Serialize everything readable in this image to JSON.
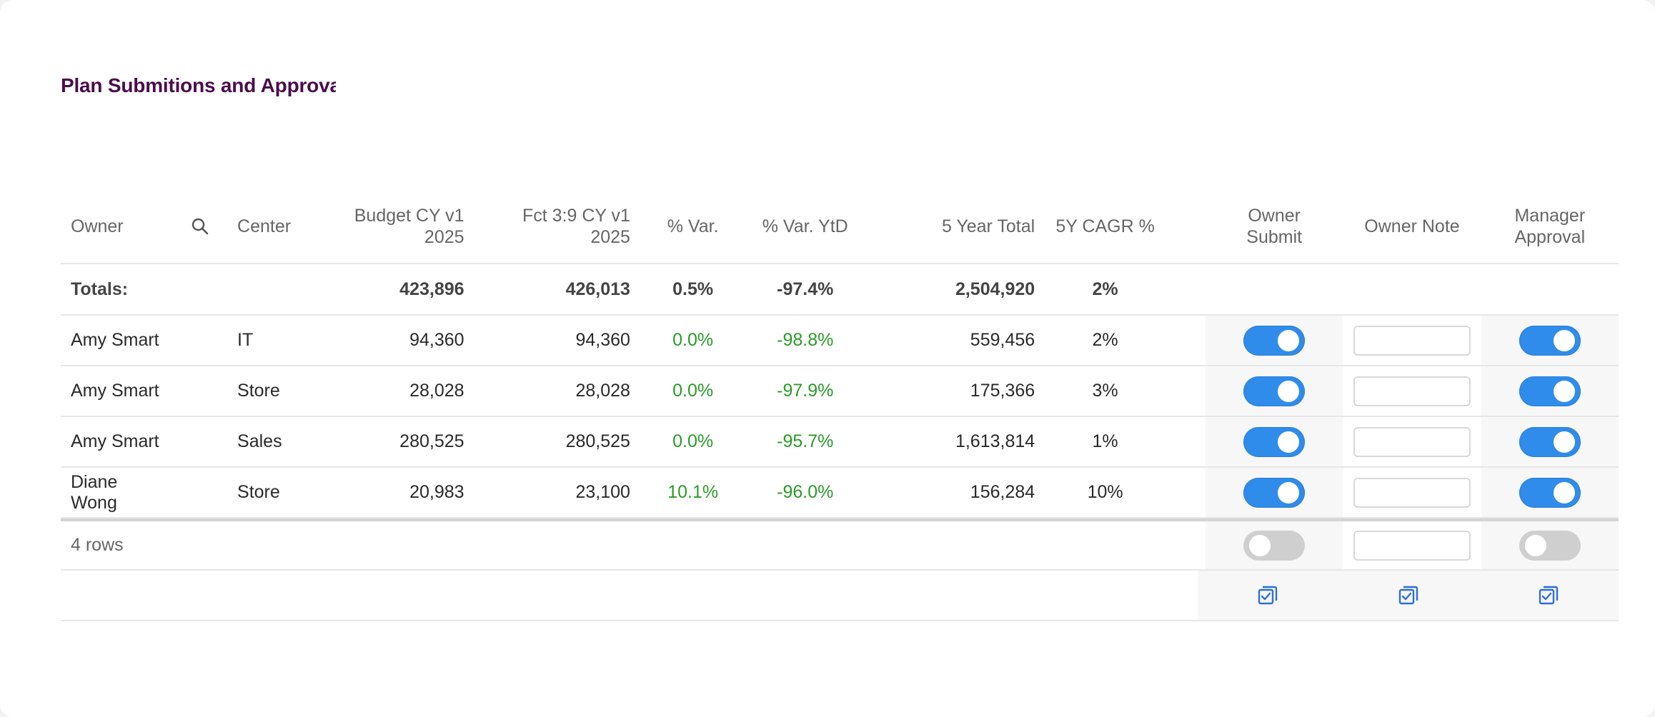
{
  "title": "Plan Submitions and Approvals",
  "colors": {
    "title": "#4a0d4c",
    "toggle_on": "#2f8cea",
    "toggle_off": "#cfcfcf",
    "positive_variance": "#2a9b2a",
    "icon_blue": "#2f6fd6"
  },
  "headers": {
    "owner": "Owner",
    "search_icon": "search-icon",
    "center": "Center",
    "budget_line1": "Budget CY v1",
    "budget_line2": "2025",
    "fct_line1": "Fct 3:9 CY v1",
    "fct_line2": "2025",
    "var": "% Var.",
    "var_ytd": "% Var. YtD",
    "five_year_total": "5 Year Total",
    "cagr": "5Y CAGR %",
    "owner_submit_line1": "Owner",
    "owner_submit_line2": "Submit",
    "owner_note": "Owner Note",
    "manager_approval_line1": "Manager",
    "manager_approval_line2": "Approval"
  },
  "totals": {
    "label": "Totals:",
    "budget": "423,896",
    "fct": "426,013",
    "var": "0.5%",
    "var_ytd": "-97.4%",
    "five_year_total": "2,504,920",
    "cagr": "2%"
  },
  "rows": [
    {
      "owner": "Amy Smart",
      "center": "IT",
      "budget": "94,360",
      "fct": "94,360",
      "var": "0.0%",
      "var_ytd": "-98.8%",
      "five_year_total": "559,456",
      "cagr": "2%",
      "owner_submit": true,
      "owner_note": "",
      "manager_approval": true
    },
    {
      "owner": "Amy Smart",
      "center": "Store",
      "budget": "28,028",
      "fct": "28,028",
      "var": "0.0%",
      "var_ytd": "-97.9%",
      "five_year_total": "175,366",
      "cagr": "3%",
      "owner_submit": true,
      "owner_note": "",
      "manager_approval": true
    },
    {
      "owner": "Amy Smart",
      "center": "Sales",
      "budget": "280,525",
      "fct": "280,525",
      "var": "0.0%",
      "var_ytd": "-95.7%",
      "five_year_total": "1,613,814",
      "cagr": "1%",
      "owner_submit": true,
      "owner_note": "",
      "manager_approval": true
    },
    {
      "owner": "Diane Wong",
      "center": "Store",
      "budget": "20,983",
      "fct": "23,100",
      "var": "10.1%",
      "var_ytd": "-96.0%",
      "five_year_total": "156,284",
      "cagr": "10%",
      "owner_submit": true,
      "owner_note": "",
      "manager_approval": true
    }
  ],
  "footer": {
    "row_count": "4 rows",
    "bulk_owner_submit": false,
    "bulk_owner_note": "",
    "bulk_manager_approval": false
  },
  "apply_icons": {
    "owner_submit": "apply-all-icon",
    "owner_note": "apply-all-icon",
    "manager_approval": "apply-all-icon"
  }
}
